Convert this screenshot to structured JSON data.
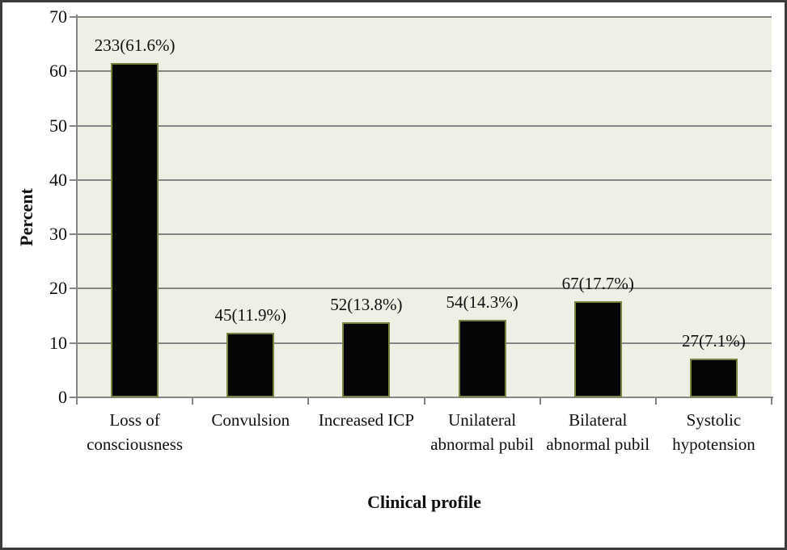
{
  "chart": {
    "colors": {
      "background": "#ffffff",
      "outer_border": "#3c3c3c",
      "plot_background": "#eef0e5",
      "gridline": "#858585",
      "axis": "#858585",
      "bar_fill": "#050505",
      "bar_border": "#77843e",
      "text": "#0f0f0f"
    }
  },
  "chart_data": {
    "type": "bar",
    "title": "",
    "xlabel": "Clinical profile",
    "ylabel": "Percent",
    "categories": [
      "Loss of consciousness",
      "Convulsion",
      "Increased ICP",
      "Unilateral abnormal pubil",
      "Bilateral abnormal pubil",
      "Systolic hypotension"
    ],
    "counts": [
      233,
      45,
      52,
      54,
      67,
      27
    ],
    "values": [
      61.6,
      11.9,
      13.8,
      14.3,
      17.7,
      7.1
    ],
    "bar_labels": [
      "233(61.6%)",
      "45(11.9%)",
      "52(13.8%)",
      "54(14.3%)",
      "67(17.7%)",
      "27(7.1%)"
    ],
    "ylim": [
      0,
      70
    ],
    "yticks": [
      0,
      10,
      20,
      30,
      40,
      50,
      60,
      70
    ],
    "grid": "horizontal-gridlines-on",
    "legend": "none"
  }
}
